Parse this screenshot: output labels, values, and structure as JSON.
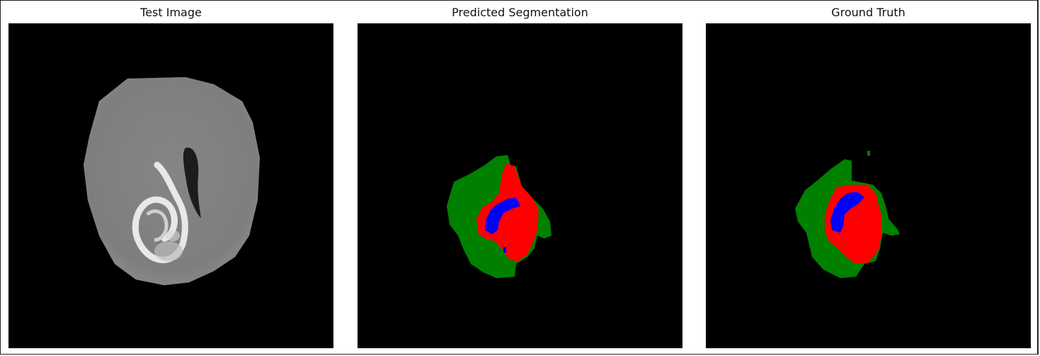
{
  "figure": {
    "panels": [
      {
        "title": "Test Image"
      },
      {
        "title": "Predicted Segmentation"
      },
      {
        "title": "Ground Truth"
      }
    ]
  },
  "colors": {
    "background": "#000000",
    "edema": "#008000",
    "enhancing": "#ff0000",
    "necrotic": "#0000ff"
  }
}
